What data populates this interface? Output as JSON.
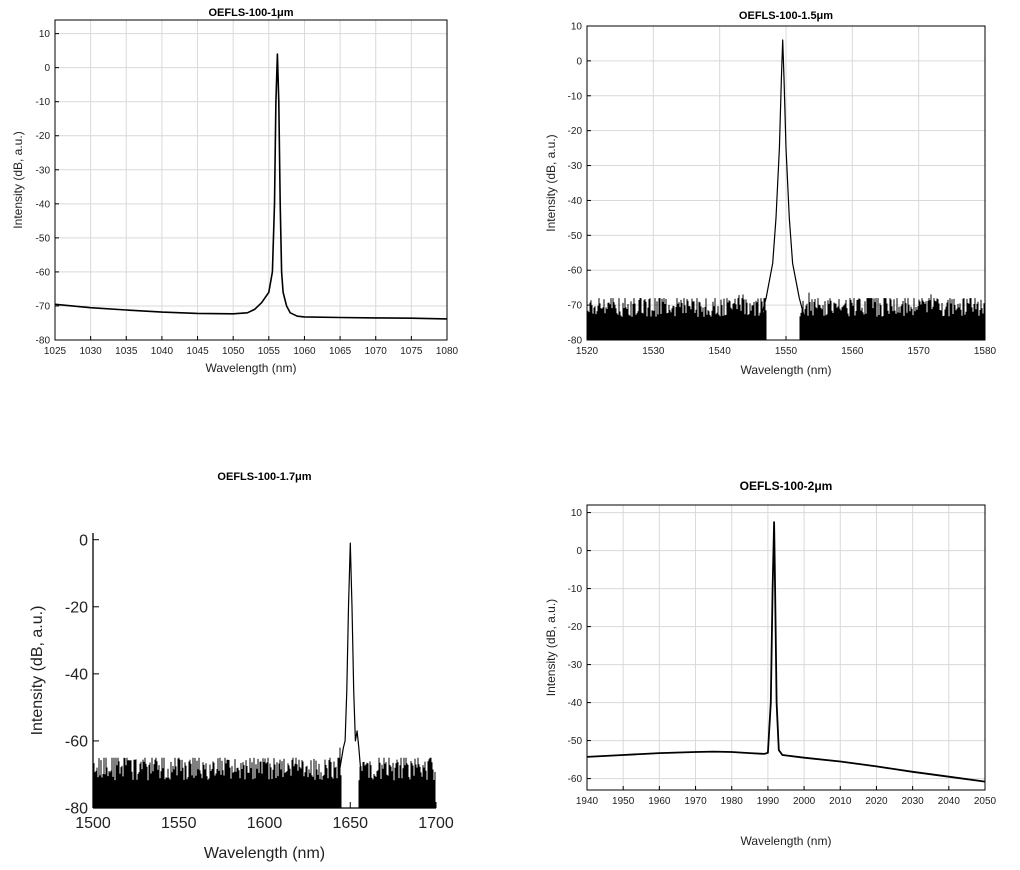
{
  "chart_data": [
    {
      "type": "line",
      "title": "OEFLS-100-1μm",
      "xlabel": "Wavelength (nm)",
      "ylabel": "Intensity (dB, a.u.)",
      "xlim": [
        1025,
        1080
      ],
      "ylim": [
        -80,
        14
      ],
      "xticks": [
        1025,
        1030,
        1035,
        1040,
        1045,
        1050,
        1055,
        1060,
        1065,
        1070,
        1075,
        1080
      ],
      "yticks": [
        10,
        0,
        -10,
        -20,
        -30,
        -40,
        -50,
        -60,
        -70,
        -80
      ],
      "grid": true,
      "series": [
        {
          "x": [
            1025,
            1030,
            1035,
            1040,
            1045,
            1050,
            1052,
            1053,
            1054,
            1055,
            1055.5,
            1055.8,
            1056,
            1056.2,
            1056.4,
            1056.6,
            1056.8,
            1057,
            1057.5,
            1058,
            1059,
            1060,
            1065,
            1070,
            1075,
            1080
          ],
          "y": [
            -69.5,
            -70.5,
            -71.2,
            -71.8,
            -72.2,
            -72.3,
            -72.0,
            -71.0,
            -69.0,
            -66.0,
            -60.0,
            -40.0,
            -10.0,
            4.0,
            -10.0,
            -40.0,
            -60.0,
            -66.0,
            -70.0,
            -72.0,
            -73.0,
            -73.2,
            -73.4,
            -73.5,
            -73.6,
            -73.8
          ]
        }
      ]
    },
    {
      "type": "line",
      "title": "OEFLS-100-1.5μm",
      "xlabel": "Wavelength (nm)",
      "ylabel": "Intensity (dB, a.u.)",
      "xlim": [
        1520,
        1580
      ],
      "ylim": [
        -80,
        10
      ],
      "xticks": [
        1520,
        1530,
        1540,
        1550,
        1560,
        1570,
        1580
      ],
      "yticks": [
        10,
        0,
        -10,
        -20,
        -30,
        -40,
        -50,
        -60,
        -70,
        -80
      ],
      "grid": true,
      "noise_floor": [
        -80,
        -68
      ],
      "series": [
        {
          "x": [
            1546,
            1547,
            1548,
            1548.5,
            1549,
            1549.3,
            1549.5,
            1549.7,
            1550,
            1550.5,
            1551,
            1552,
            1553
          ],
          "y": [
            -75,
            -68,
            -58,
            -45,
            -25,
            -5,
            6,
            -5,
            -25,
            -45,
            -58,
            -68,
            -75
          ]
        }
      ]
    },
    {
      "type": "line",
      "title": "OEFLS-100-1.7μm",
      "xlabel": "Wavelength (nm)",
      "ylabel": "Intensity (dB, a.u.)",
      "xlim": [
        1500,
        1700
      ],
      "ylim": [
        -80,
        2
      ],
      "xticks": [
        1500,
        1550,
        1600,
        1650,
        1700
      ],
      "yticks": [
        0,
        -20,
        -40,
        -60,
        -80
      ],
      "grid": false,
      "noise_floor": [
        -80,
        -65
      ],
      "series": [
        {
          "x": [
            1644,
            1646,
            1647,
            1648,
            1649,
            1650,
            1651,
            1652,
            1653,
            1654,
            1655,
            1656
          ],
          "y": [
            -68,
            -62,
            -60,
            -45,
            -20,
            -1,
            -20,
            -45,
            -60,
            -57,
            -62,
            -68
          ]
        }
      ]
    },
    {
      "type": "line",
      "title": "OEFLS-100-2μm",
      "xlabel": "Wavelength (nm)",
      "ylabel": "Intensity (dB, a.u.)",
      "xlim": [
        1940,
        2050
      ],
      "ylim": [
        -63,
        12
      ],
      "xticks": [
        1940,
        1950,
        1960,
        1970,
        1980,
        1990,
        2000,
        2010,
        2020,
        2030,
        2040,
        2050
      ],
      "yticks": [
        10,
        0,
        -10,
        -20,
        -30,
        -40,
        -50,
        -60
      ],
      "grid": true,
      "series": [
        {
          "x": [
            1940,
            1950,
            1960,
            1970,
            1975,
            1980,
            1985,
            1989,
            1990,
            1990.8,
            1991.3,
            1991.7,
            1992,
            1992.4,
            1993,
            1994,
            2000,
            2010,
            2020,
            2030,
            2040,
            2050
          ],
          "y": [
            -54.3,
            -53.8,
            -53.3,
            -53.0,
            -52.9,
            -53.0,
            -53.3,
            -53.5,
            -53.2,
            -40.0,
            -10.0,
            7.5,
            -10.0,
            -40.0,
            -52.5,
            -53.8,
            -54.5,
            -55.5,
            -56.8,
            -58.2,
            -59.5,
            -60.8
          ]
        }
      ]
    }
  ]
}
